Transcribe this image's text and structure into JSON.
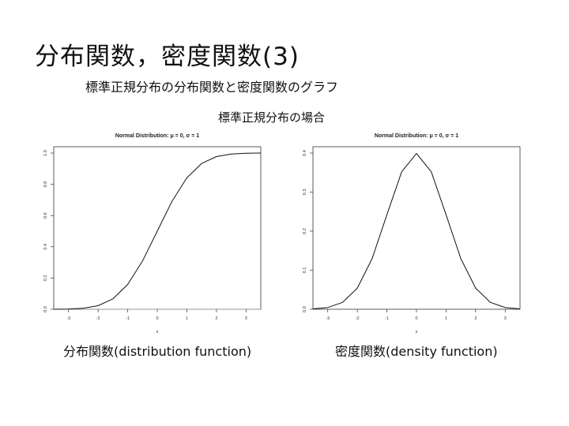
{
  "slide": {
    "title": "分布関数，密度関数(3)",
    "subtitle": "標準正規分布の分布関数と密度関数のグラフ",
    "section_label": "標準正規分布の場合",
    "caption_left": "分布関数(distribution function)",
    "caption_right": "密度関数(density function)"
  },
  "chart_data": [
    {
      "type": "line",
      "title": "Normal Distribution: μ = 0, σ = 1",
      "xlabel": "x",
      "ylabel": "",
      "xlim": [
        -3.5,
        3.5
      ],
      "ylim": [
        0,
        1.0
      ],
      "xticks": [
        -3,
        -2,
        -1,
        0,
        1,
        2,
        3
      ],
      "yticks": [
        0.0,
        0.2,
        0.4,
        0.6,
        0.8,
        1.0
      ],
      "ytick_labels": [
        "0.0",
        "0.2",
        "0.4",
        "0.6",
        "0.8",
        "1.0"
      ],
      "grid": false,
      "baseline": 0,
      "series": [
        {
          "x": [
            -3.5,
            -3,
            -2.5,
            -2,
            -1.5,
            -1,
            -0.5,
            0,
            0.5,
            1,
            1.5,
            2,
            2.5,
            3,
            3.5
          ],
          "y": [
            0.0002,
            0.0013,
            0.0062,
            0.0228,
            0.0668,
            0.1587,
            0.3085,
            0.5,
            0.6915,
            0.8413,
            0.9332,
            0.9772,
            0.9938,
            0.9987,
            0.9998
          ]
        }
      ]
    },
    {
      "type": "line",
      "title": "Normal Distribution: μ = 0, σ = 1",
      "xlabel": "x",
      "ylabel": "",
      "xlim": [
        -3.5,
        3.5
      ],
      "ylim": [
        0,
        0.4
      ],
      "xticks": [
        -3,
        -2,
        -1,
        0,
        1,
        2,
        3
      ],
      "yticks": [
        0.0,
        0.1,
        0.2,
        0.3,
        0.4
      ],
      "ytick_labels": [
        "0.0",
        "0.1",
        "0.2",
        "0.3",
        "0.4"
      ],
      "grid": false,
      "series": [
        {
          "x": [
            -3.5,
            -3,
            -2.5,
            -2,
            -1.5,
            -1,
            -0.5,
            0,
            0.5,
            1,
            1.5,
            2,
            2.5,
            3,
            3.5
          ],
          "y": [
            0.0009,
            0.0044,
            0.0175,
            0.054,
            0.1295,
            0.242,
            0.3521,
            0.3989,
            0.3521,
            0.242,
            0.1295,
            0.054,
            0.0175,
            0.0044,
            0.0009
          ]
        }
      ]
    }
  ]
}
